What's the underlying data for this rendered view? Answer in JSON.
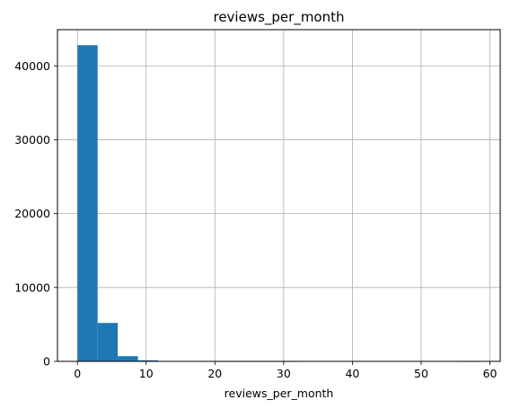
{
  "chart_data": {
    "type": "bar",
    "title": "reviews_per_month",
    "xlabel": "reviews_per_month",
    "ylabel": "",
    "bin_start": 0.01,
    "bin_width": 2.929,
    "values": [
      42800,
      5200,
      700,
      150,
      50,
      20,
      8,
      4,
      2,
      1,
      1,
      0,
      0,
      0,
      0,
      0,
      0,
      0,
      0,
      1
    ],
    "xlim": [
      -2.9,
      61.5
    ],
    "ylim": [
      0,
      44900
    ],
    "xticks": [
      0,
      10,
      20,
      30,
      40,
      50,
      60
    ],
    "yticks": [
      0,
      10000,
      20000,
      30000,
      40000
    ],
    "grid": true,
    "bar_color": "#1f77b4",
    "grid_color": "#b0b0b0"
  }
}
